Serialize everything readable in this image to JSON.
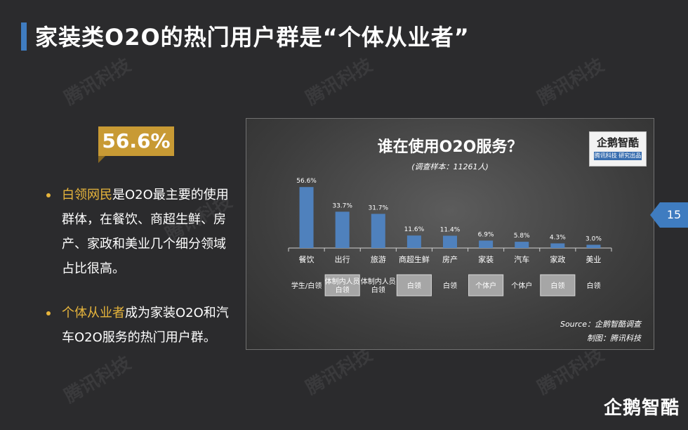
{
  "slide": {
    "title": "家装类O2O的热门用户群是“个体从业者”",
    "page_number": "15",
    "brand": "企鹅智酷",
    "watermark": "腾讯科技"
  },
  "stat": {
    "value": "56.6%"
  },
  "bullets": [
    {
      "highlight": "白领网民",
      "text": "是O2O最主要的使用群体，在餐饮、商超生鲜、房产、家政和美业几个细分领域占比很高。"
    },
    {
      "highlight": "个体从业者",
      "text": "成为家装O2O和汽车O2O服务的热门用户群。"
    }
  ],
  "panel": {
    "logo_main": "企鹅智酷",
    "logo_sub": "腾讯科技  研究出品",
    "source": "Source：企鹅智酷调查",
    "made_by": "制图：腾讯科技"
  },
  "colors": {
    "accent_blue": "#3f7cc0",
    "bar_blue": "#4f81bd",
    "gold": "#c89a34",
    "highlight_yellow": "#e6b43c",
    "grey_box": "#a6a6a6"
  },
  "chart_data": {
    "type": "bar",
    "title": "谁在使用O2O服务？",
    "subtitle": "(调查样本：11261人)",
    "categories": [
      "餐饮",
      "出行",
      "旅游",
      "商超生鲜",
      "房产",
      "家装",
      "汽车",
      "家政",
      "美业"
    ],
    "values": [
      56.6,
      33.7,
      31.7,
      11.6,
      11.4,
      6.9,
      5.8,
      4.3,
      3.0
    ],
    "value_labels": [
      "56.6%",
      "33.7%",
      "31.7%",
      "11.6%",
      "11.4%",
      "6.9%",
      "5.8%",
      "4.3%",
      "3.0%"
    ],
    "ylim": [
      0,
      60
    ],
    "user_groups": [
      "学生/白领",
      "体制内人员\n白领",
      "体制内人员\n白领",
      "白领",
      "白领",
      "个体户",
      "个体户",
      "白领",
      "白领"
    ],
    "user_group_boxed": [
      false,
      true,
      false,
      true,
      false,
      true,
      false,
      true,
      false
    ],
    "grid": false,
    "legend": "none"
  }
}
